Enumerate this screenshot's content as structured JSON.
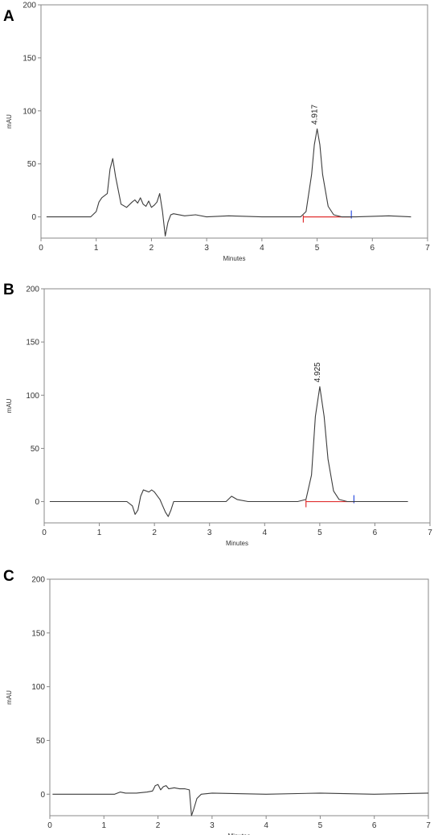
{
  "chart_data": [
    {
      "panel_label": "A",
      "type": "line",
      "xlabel": "Minutes",
      "ylabel": "mAU",
      "xlim": [
        0,
        7
      ],
      "ylim": [
        -20,
        200
      ],
      "x_ticks": [
        0,
        1,
        2,
        3,
        4,
        5,
        6,
        7
      ],
      "y_ticks": [
        0,
        50,
        100,
        150,
        200
      ],
      "grid": false,
      "colors": {
        "trace": "#3c3c3c",
        "axis": "#888888",
        "baseline": "#e03030",
        "peak_start": "#e03030",
        "peak_end": "#3050e0"
      },
      "peak_label": {
        "text": "4.917",
        "x": 5.0,
        "y": 87
      },
      "peak_markers": {
        "start_x": 4.75,
        "end_x": 5.62
      },
      "series": [
        {
          "x": [
            0.1,
            0.9,
            1.0,
            1.05,
            1.1,
            1.2,
            1.25,
            1.3,
            1.35,
            1.45,
            1.55,
            1.65,
            1.7,
            1.75,
            1.8,
            1.85,
            1.9,
            1.95,
            2.0,
            2.05,
            2.1,
            2.15,
            2.2,
            2.25,
            2.3,
            2.35,
            2.4,
            2.6,
            2.8,
            3.0,
            3.4,
            4.0,
            4.7,
            4.8,
            4.9,
            4.95,
            5.0,
            5.05,
            5.1,
            5.2,
            5.3,
            5.45,
            5.7,
            6.3,
            6.7
          ],
          "y": [
            0,
            0,
            5,
            14,
            18,
            22,
            45,
            55,
            38,
            12,
            9,
            14,
            16,
            13,
            18,
            12,
            10,
            15,
            9,
            11,
            14,
            22,
            5,
            -18,
            -5,
            2,
            3,
            1,
            2,
            0,
            1,
            0,
            0,
            5,
            40,
            68,
            83,
            68,
            40,
            10,
            2,
            0,
            0,
            1,
            0
          ]
        }
      ]
    },
    {
      "panel_label": "B",
      "type": "line",
      "xlabel": "Minutes",
      "ylabel": "mAU",
      "xlim": [
        0,
        7
      ],
      "ylim": [
        -20,
        200
      ],
      "x_ticks": [
        0,
        1,
        2,
        3,
        4,
        5,
        6,
        7
      ],
      "y_ticks": [
        0,
        50,
        100,
        150,
        200
      ],
      "grid": false,
      "colors": {
        "trace": "#3c3c3c",
        "axis": "#888888",
        "baseline": "#e03030",
        "peak_start": "#e03030",
        "peak_end": "#3050e0"
      },
      "peak_label": {
        "text": "4.925",
        "x": 5.0,
        "y": 112
      },
      "peak_markers": {
        "start_x": 4.75,
        "end_x": 5.62
      },
      "series": [
        {
          "x": [
            0.1,
            1.5,
            1.6,
            1.65,
            1.7,
            1.75,
            1.8,
            1.85,
            1.9,
            1.95,
            2.0,
            2.1,
            2.15,
            2.2,
            2.25,
            2.3,
            2.35,
            2.4,
            2.6,
            3.3,
            3.4,
            3.5,
            3.7,
            4.6,
            4.75,
            4.85,
            4.92,
            5.0,
            5.08,
            5.15,
            5.25,
            5.35,
            5.5,
            6.6
          ],
          "y": [
            0,
            0,
            -4,
            -12,
            -8,
            5,
            11,
            10,
            9,
            11,
            9,
            2,
            -4,
            -10,
            -14,
            -8,
            0,
            0,
            0,
            0,
            5,
            2,
            0,
            0,
            2,
            25,
            80,
            108,
            80,
            40,
            10,
            2,
            0,
            0
          ]
        }
      ]
    },
    {
      "panel_label": "C",
      "type": "line",
      "xlabel": "Minutes",
      "ylabel": "mAU",
      "xlim": [
        0,
        7
      ],
      "ylim": [
        -20,
        200
      ],
      "x_ticks": [
        0,
        1,
        2,
        3,
        4,
        5,
        6,
        7
      ],
      "y_ticks": [
        0,
        50,
        100,
        150,
        200
      ],
      "grid": false,
      "colors": {
        "trace": "#3c3c3c",
        "axis": "#888888",
        "baseline": "#e03030",
        "peak_start": "#e03030",
        "peak_end": "#3050e0"
      },
      "series": [
        {
          "x": [
            0.05,
            1.2,
            1.3,
            1.4,
            1.6,
            1.8,
            1.9,
            1.95,
            2.0,
            2.05,
            2.1,
            2.15,
            2.2,
            2.3,
            2.4,
            2.5,
            2.58,
            2.62,
            2.66,
            2.72,
            2.8,
            3.0,
            4.0,
            5.0,
            6.0,
            7.0
          ],
          "y": [
            0,
            0,
            2,
            1,
            1,
            2,
            3,
            8,
            9,
            4,
            7,
            8,
            5,
            6,
            5,
            5,
            4,
            -20,
            -14,
            -4,
            0,
            1,
            0,
            1,
            0,
            1
          ]
        }
      ]
    }
  ]
}
